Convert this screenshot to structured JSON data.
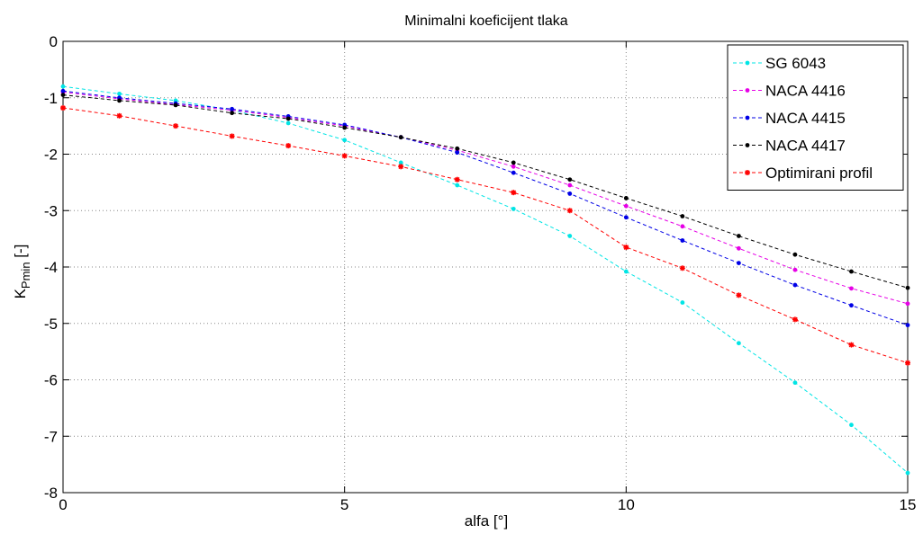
{
  "chart_data": {
    "type": "line",
    "title": "Minimalni koeficijent tlaka",
    "xlabel": "alfa [°]",
    "ylabel_main": "K",
    "ylabel_sub": "Pmin",
    "ylabel_suffix": " [-]",
    "xlim": [
      0,
      15
    ],
    "ylim": [
      -8,
      0
    ],
    "xticks": [
      0,
      5,
      10,
      15
    ],
    "yticks": [
      0,
      -1,
      -2,
      -3,
      -4,
      -5,
      -6,
      -7,
      -8
    ],
    "grid": true,
    "legend_position": "top-right",
    "x": [
      0,
      1,
      2,
      3,
      4,
      5,
      6,
      7,
      8,
      9,
      10,
      11,
      12,
      13,
      14,
      15
    ],
    "series": [
      {
        "name": "SG 6043",
        "color": "#00e5e5",
        "marker": "dot",
        "values": [
          -0.8,
          -0.93,
          -1.05,
          -1.22,
          -1.45,
          -1.75,
          -2.15,
          -2.55,
          -2.97,
          -3.45,
          -4.08,
          -4.63,
          -5.35,
          -6.05,
          -6.8,
          -7.65
        ]
      },
      {
        "name": "NACA 4416",
        "color": "#e600e6",
        "marker": "dot",
        "values": [
          -0.9,
          -1.02,
          -1.12,
          -1.22,
          -1.35,
          -1.5,
          -1.7,
          -1.93,
          -2.22,
          -2.55,
          -2.92,
          -3.28,
          -3.67,
          -4.05,
          -4.38,
          -4.65
        ]
      },
      {
        "name": "NACA 4415",
        "color": "#0000e6",
        "marker": "dot",
        "values": [
          -0.88,
          -1.0,
          -1.1,
          -1.2,
          -1.33,
          -1.48,
          -1.7,
          -1.97,
          -2.33,
          -2.7,
          -3.12,
          -3.53,
          -3.93,
          -4.32,
          -4.68,
          -5.03
        ]
      },
      {
        "name": "NACA 4417",
        "color": "#000000",
        "marker": "dot",
        "values": [
          -0.95,
          -1.05,
          -1.13,
          -1.27,
          -1.37,
          -1.53,
          -1.7,
          -1.9,
          -2.15,
          -2.45,
          -2.78,
          -3.1,
          -3.45,
          -3.78,
          -4.08,
          -4.37
        ]
      },
      {
        "name": "Optimirani profil",
        "color": "#ff0000",
        "marker": "star",
        "values": [
          -1.18,
          -1.32,
          -1.5,
          -1.68,
          -1.85,
          -2.03,
          -2.22,
          -2.45,
          -2.68,
          -3.0,
          -3.65,
          -4.02,
          -4.5,
          -4.93,
          -5.38,
          -5.7
        ]
      }
    ]
  }
}
